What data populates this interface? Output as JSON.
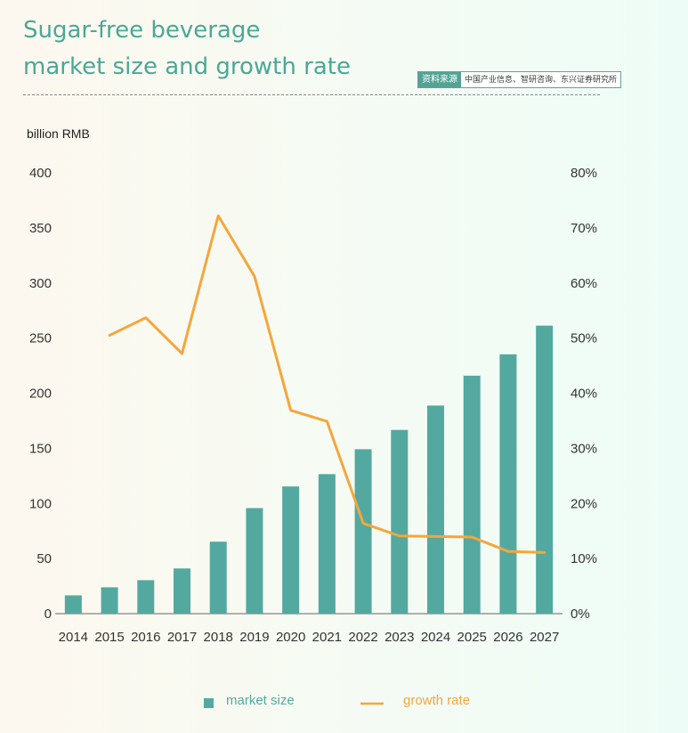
{
  "header": {
    "title_line1": "Sugar-free beverage",
    "title_line2": "market size and growth rate",
    "source_tag": "资料来源",
    "source_text": "中国产业信息、智研咨询、东兴证券研究所"
  },
  "colors": {
    "bar": "#53a9a0",
    "line": "#f5a63b",
    "title": "#4aa896"
  },
  "chart_data": {
    "type": "bar",
    "title": "Sugar-free beverage market size and growth rate",
    "ylabel": "billion RMB",
    "categories": [
      "2014",
      "2015",
      "2016",
      "2017",
      "2018",
      "2019",
      "2020",
      "2021",
      "2022",
      "2023",
      "2024",
      "2025",
      "2026",
      "2027"
    ],
    "ylim": [
      0,
      400
    ],
    "y_ticks": [
      0,
      50,
      100,
      150,
      200,
      250,
      300,
      350,
      400
    ],
    "y2lim": [
      0,
      80
    ],
    "y2_ticks": [
      "0%",
      "10%",
      "20%",
      "30%",
      "40%",
      "50%",
      "60%",
      "70%",
      "80%"
    ],
    "grid": false,
    "legend_position": "bottom",
    "series": [
      {
        "name": "market size",
        "type": "bar",
        "axis": "left",
        "values": [
          16.6,
          23.9,
          30.4,
          41.0,
          65.3,
          95.8,
          115.4,
          126.6,
          149.2,
          166.7,
          188.8,
          215.9,
          235.3,
          261.3
        ]
      },
      {
        "name": "growth rate",
        "type": "line",
        "axis": "right",
        "values": [
          null,
          50.5,
          53.7,
          47.2,
          72.2,
          61.2,
          36.9,
          34.9,
          16.4,
          14.1,
          14.0,
          13.9,
          11.3,
          11.1
        ]
      }
    ]
  },
  "legend": {
    "bar_label": "market size",
    "line_label": "growth rate"
  }
}
